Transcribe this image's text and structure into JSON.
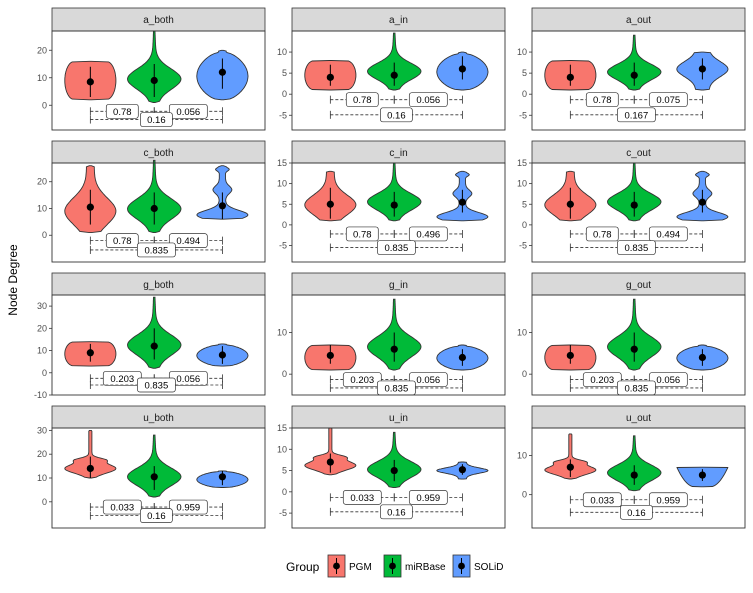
{
  "chart_data": {
    "type": "violin",
    "ylabel": "Node Degree",
    "groups": [
      "PGM",
      "miRBase",
      "SOLiD"
    ],
    "colors": {
      "PGM": "#F8766D",
      "miRBase": "#00BA38",
      "SOLiD": "#619CFF"
    },
    "legend": {
      "title": "Group",
      "position": "bottom",
      "items": [
        "PGM",
        "miRBase",
        "SOLiD"
      ]
    },
    "panels": [
      {
        "name": "a_both",
        "ylim": [
          -9,
          27
        ],
        "yticks": [
          0,
          10,
          20
        ],
        "yticklabels": [
          "0",
          "10",
          "20"
        ],
        "series": [
          {
            "group": "PGM",
            "lo": 2,
            "hi": 16,
            "shape": "box",
            "mean": 8.5,
            "err": [
              3,
              14
            ]
          },
          {
            "group": "miRBase",
            "lo": 1,
            "hi": 27,
            "shape": "peak",
            "mean": 9,
            "err": [
              3,
              15
            ]
          },
          {
            "group": "SOLiD",
            "lo": 2,
            "hi": 20,
            "shape": "round",
            "mean": 12,
            "err": [
              6,
              17
            ]
          }
        ],
        "comparisons": [
          {
            "from": "PGM",
            "to": "miRBase",
            "y": -2.2,
            "label": "0.78"
          },
          {
            "from": "miRBase",
            "to": "SOLiD",
            "y": -2.2,
            "label": "0.056"
          },
          {
            "from": "PGM",
            "to": "SOLiD",
            "y": -5.2,
            "label": "0.16"
          }
        ]
      },
      {
        "name": "a_in",
        "ylim": [
          -8.5,
          15
        ],
        "yticks": [
          -5,
          0,
          5,
          10
        ],
        "yticklabels": [
          "-5",
          "0",
          "5",
          "10"
        ],
        "series": [
          {
            "group": "PGM",
            "lo": 1,
            "hi": 8,
            "shape": "box",
            "mean": 4,
            "err": [
              2,
              7
            ]
          },
          {
            "group": "miRBase",
            "lo": 1,
            "hi": 14.5,
            "shape": "peak",
            "mean": 4.5,
            "err": [
              2,
              7.5
            ]
          },
          {
            "group": "SOLiD",
            "lo": 1,
            "hi": 10,
            "shape": "round",
            "mean": 6,
            "err": [
              3.5,
              9
            ]
          }
        ],
        "comparisons": [
          {
            "from": "PGM",
            "to": "miRBase",
            "y": -1.3,
            "label": "0.78"
          },
          {
            "from": "miRBase",
            "to": "SOLiD",
            "y": -1.3,
            "label": "0.056"
          },
          {
            "from": "PGM",
            "to": "SOLiD",
            "y": -4.9,
            "label": "0.16"
          }
        ]
      },
      {
        "name": "a_out",
        "ylim": [
          -8.5,
          15
        ],
        "yticks": [
          -5,
          0,
          5,
          10
        ],
        "yticklabels": [
          "-5",
          "0",
          "5",
          "10"
        ],
        "series": [
          {
            "group": "PGM",
            "lo": 1,
            "hi": 8,
            "shape": "box",
            "mean": 4,
            "err": [
              2,
              7
            ]
          },
          {
            "group": "miRBase",
            "lo": 1,
            "hi": 14,
            "shape": "peak",
            "mean": 4.5,
            "err": [
              2,
              7.5
            ]
          },
          {
            "group": "SOLiD",
            "lo": 1,
            "hi": 10,
            "shape": "flare",
            "mean": 6,
            "err": [
              3.5,
              8.5
            ]
          }
        ],
        "comparisons": [
          {
            "from": "PGM",
            "to": "miRBase",
            "y": -1.3,
            "label": "0.78"
          },
          {
            "from": "miRBase",
            "to": "SOLiD",
            "y": -1.3,
            "label": "0.075"
          },
          {
            "from": "PGM",
            "to": "SOLiD",
            "y": -4.9,
            "label": "0.167"
          }
        ]
      },
      {
        "name": "c_both",
        "ylim": [
          -10,
          27
        ],
        "yticks": [
          0,
          10,
          20
        ],
        "yticklabels": [
          "0",
          "10",
          "20"
        ],
        "series": [
          {
            "group": "PGM",
            "lo": 1,
            "hi": 26,
            "shape": "bulge",
            "mean": 10.5,
            "err": [
              4,
              17
            ]
          },
          {
            "group": "miRBase",
            "lo": 1,
            "hi": 28,
            "shape": "peak",
            "mean": 10,
            "err": [
              4,
              16
            ]
          },
          {
            "group": "SOLiD",
            "lo": 6,
            "hi": 26,
            "shape": "pit",
            "mean": 11,
            "err": [
              6,
              16
            ]
          }
        ],
        "comparisons": [
          {
            "from": "PGM",
            "to": "miRBase",
            "y": -2,
            "label": "0.78"
          },
          {
            "from": "miRBase",
            "to": "SOLiD",
            "y": -2,
            "label": "0.494"
          },
          {
            "from": "PGM",
            "to": "SOLiD",
            "y": -5.5,
            "label": "0.835"
          }
        ]
      },
      {
        "name": "c_in",
        "ylim": [
          -9,
          15
        ],
        "yticks": [
          -5,
          0,
          5,
          10,
          15
        ],
        "yticklabels": [
          "-5",
          "0",
          "5",
          "10",
          "15"
        ],
        "series": [
          {
            "group": "PGM",
            "lo": 1,
            "hi": 13,
            "shape": "bulge",
            "mean": 5,
            "err": [
              1.5,
              9
            ]
          },
          {
            "group": "miRBase",
            "lo": 1,
            "hi": 15,
            "shape": "peak",
            "mean": 4.8,
            "err": [
              2,
              8
            ]
          },
          {
            "group": "SOLiD",
            "lo": 1,
            "hi": 13,
            "shape": "pit",
            "mean": 5.5,
            "err": [
              3,
              8.5
            ]
          }
        ],
        "comparisons": [
          {
            "from": "PGM",
            "to": "miRBase",
            "y": -2.2,
            "label": "0.78"
          },
          {
            "from": "miRBase",
            "to": "SOLiD",
            "y": -2.2,
            "label": "0.496"
          },
          {
            "from": "PGM",
            "to": "SOLiD",
            "y": -5.5,
            "label": "0.835"
          }
        ]
      },
      {
        "name": "c_out",
        "ylim": [
          -9,
          15
        ],
        "yticks": [
          -5,
          0,
          5,
          10,
          15
        ],
        "yticklabels": [
          "-5",
          "0",
          "5",
          "10",
          "15"
        ],
        "series": [
          {
            "group": "PGM",
            "lo": 1,
            "hi": 13,
            "shape": "bulge",
            "mean": 5,
            "err": [
              1.5,
              9
            ]
          },
          {
            "group": "miRBase",
            "lo": 1,
            "hi": 15,
            "shape": "peak",
            "mean": 4.8,
            "err": [
              2,
              8
            ]
          },
          {
            "group": "SOLiD",
            "lo": 1,
            "hi": 13,
            "shape": "pit",
            "mean": 5.5,
            "err": [
              3,
              8.5
            ]
          }
        ],
        "comparisons": [
          {
            "from": "PGM",
            "to": "miRBase",
            "y": -2.2,
            "label": "0.78"
          },
          {
            "from": "miRBase",
            "to": "SOLiD",
            "y": -2.2,
            "label": "0.494"
          },
          {
            "from": "PGM",
            "to": "SOLiD",
            "y": -5.5,
            "label": "0.835"
          }
        ]
      },
      {
        "name": "g_both",
        "ylim": [
          -10,
          35
        ],
        "yticks": [
          -10,
          0,
          10,
          20,
          30
        ],
        "yticklabels": [
          "-10",
          "0",
          "10",
          "20",
          "30"
        ],
        "series": [
          {
            "group": "PGM",
            "lo": 3,
            "hi": 14,
            "shape": "box",
            "mean": 9,
            "err": [
              5,
              13
            ]
          },
          {
            "group": "miRBase",
            "lo": 2,
            "hi": 34,
            "shape": "peak",
            "mean": 12,
            "err": [
              6,
              20
            ]
          },
          {
            "group": "SOLiD",
            "lo": 3,
            "hi": 13,
            "shape": "round",
            "mean": 8,
            "err": [
              4,
              12
            ]
          }
        ],
        "comparisons": [
          {
            "from": "PGM",
            "to": "miRBase",
            "y": -2.5,
            "label": "0.203"
          },
          {
            "from": "miRBase",
            "to": "SOLiD",
            "y": -2.5,
            "label": "0.056"
          },
          {
            "from": "PGM",
            "to": "SOLiD",
            "y": -5.5,
            "label": "0.835"
          }
        ]
      },
      {
        "name": "g_in",
        "ylim": [
          -5,
          19
        ],
        "yticks": [
          0,
          10
        ],
        "yticklabels": [
          "0",
          "10"
        ],
        "series": [
          {
            "group": "PGM",
            "lo": 1,
            "hi": 7,
            "shape": "box",
            "mean": 4.5,
            "err": [
              2.5,
              7
            ]
          },
          {
            "group": "miRBase",
            "lo": 1,
            "hi": 18,
            "shape": "peak",
            "mean": 6,
            "err": [
              3,
              10
            ]
          },
          {
            "group": "SOLiD",
            "lo": 1,
            "hi": 7,
            "shape": "round",
            "mean": 4,
            "err": [
              2,
              6
            ]
          }
        ],
        "comparisons": [
          {
            "from": "PGM",
            "to": "miRBase",
            "y": -1.3,
            "label": "0.203"
          },
          {
            "from": "miRBase",
            "to": "SOLiD",
            "y": -1.3,
            "label": "0.056"
          },
          {
            "from": "PGM",
            "to": "SOLiD",
            "y": -3.3,
            "label": "0.835"
          }
        ]
      },
      {
        "name": "g_out",
        "ylim": [
          -5,
          19
        ],
        "yticks": [
          0,
          10
        ],
        "yticklabels": [
          "0",
          "10"
        ],
        "series": [
          {
            "group": "PGM",
            "lo": 1,
            "hi": 7,
            "shape": "box",
            "mean": 4.5,
            "err": [
              2.5,
              7
            ]
          },
          {
            "group": "miRBase",
            "lo": 1,
            "hi": 18,
            "shape": "peak",
            "mean": 6,
            "err": [
              3,
              10
            ]
          },
          {
            "group": "SOLiD",
            "lo": 1,
            "hi": 7,
            "shape": "round",
            "mean": 4,
            "err": [
              2,
              6
            ]
          }
        ],
        "comparisons": [
          {
            "from": "PGM",
            "to": "miRBase",
            "y": -1.3,
            "label": "0.203"
          },
          {
            "from": "miRBase",
            "to": "SOLiD",
            "y": -1.3,
            "label": "0.056"
          },
          {
            "from": "PGM",
            "to": "SOLiD",
            "y": -3.3,
            "label": "0.835"
          }
        ]
      },
      {
        "name": "u_both",
        "ylim": [
          -11,
          31
        ],
        "yticks": [
          0,
          10,
          20,
          30
        ],
        "yticklabels": [
          "0",
          "10",
          "20",
          "30"
        ],
        "series": [
          {
            "group": "PGM",
            "lo": 10,
            "hi": 30,
            "shape": "top",
            "mean": 14,
            "err": [
              10,
              19
            ]
          },
          {
            "group": "miRBase",
            "lo": 2,
            "hi": 28,
            "shape": "peak",
            "mean": 10.5,
            "err": [
              5,
              15
            ]
          },
          {
            "group": "SOLiD",
            "lo": 6,
            "hi": 13,
            "shape": "round",
            "mean": 10.5,
            "err": [
              7,
              13
            ]
          }
        ],
        "comparisons": [
          {
            "from": "PGM",
            "to": "miRBase",
            "y": -2.2,
            "label": "0.033"
          },
          {
            "from": "miRBase",
            "to": "SOLiD",
            "y": -2.2,
            "label": "0.959"
          },
          {
            "from": "PGM",
            "to": "SOLiD",
            "y": -5.8,
            "label": "0.16"
          }
        ]
      },
      {
        "name": "u_in",
        "ylim": [
          -8.5,
          15
        ],
        "yticks": [
          -5,
          0,
          5,
          10,
          15
        ],
        "yticklabels": [
          "-5",
          "0",
          "5",
          "10",
          "15"
        ],
        "series": [
          {
            "group": "PGM",
            "lo": 4,
            "hi": 15,
            "shape": "top",
            "mean": 7,
            "err": [
              4.5,
              9
            ]
          },
          {
            "group": "miRBase",
            "lo": 1,
            "hi": 14,
            "shape": "peak",
            "mean": 5,
            "err": [
              2.5,
              7.5
            ]
          },
          {
            "group": "SOLiD",
            "lo": 3,
            "hi": 7,
            "shape": "diamond",
            "mean": 5.2,
            "err": [
              4,
              6.5
            ]
          }
        ],
        "comparisons": [
          {
            "from": "PGM",
            "to": "miRBase",
            "y": -1.3,
            "label": "0.033"
          },
          {
            "from": "miRBase",
            "to": "SOLiD",
            "y": -1.3,
            "label": "0.959"
          },
          {
            "from": "PGM",
            "to": "SOLiD",
            "y": -4.7,
            "label": "0.16"
          }
        ]
      },
      {
        "name": "u_out",
        "ylim": [
          -8.5,
          17
        ],
        "yticks": [
          0,
          10
        ],
        "yticklabels": [
          "0",
          "10"
        ],
        "series": [
          {
            "group": "PGM",
            "lo": 4,
            "hi": 15.5,
            "shape": "top",
            "mean": 7,
            "err": [
              4.5,
              9
            ]
          },
          {
            "group": "miRBase",
            "lo": 1,
            "hi": 15,
            "shape": "peak",
            "mean": 5,
            "err": [
              2.5,
              7.5
            ]
          },
          {
            "group": "SOLiD",
            "lo": 2,
            "hi": 7,
            "shape": "cup",
            "mean": 5,
            "err": [
              3.5,
              6.5
            ]
          }
        ],
        "comparisons": [
          {
            "from": "PGM",
            "to": "miRBase",
            "y": -1.3,
            "label": "0.033"
          },
          {
            "from": "miRBase",
            "to": "SOLiD",
            "y": -1.3,
            "label": "0.959"
          },
          {
            "from": "PGM",
            "to": "SOLiD",
            "y": -4.5,
            "label": "0.16"
          }
        ]
      }
    ]
  }
}
